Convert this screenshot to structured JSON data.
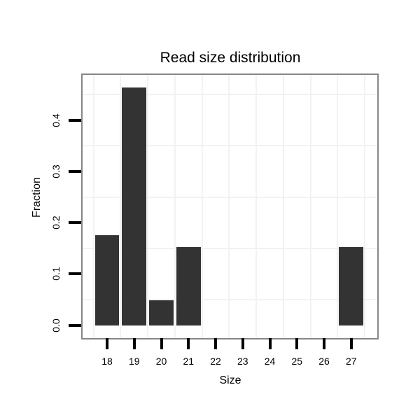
{
  "chart_data": {
    "type": "bar",
    "title": "Read size distribution",
    "xlabel": "Size",
    "ylabel": "Fraction",
    "categories": [
      "18",
      "19",
      "20",
      "21",
      "22",
      "23",
      "24",
      "25",
      "26",
      "27"
    ],
    "values": [
      0.176,
      0.464,
      0.049,
      0.153,
      0,
      0,
      0,
      0,
      0,
      0.153
    ],
    "y_ticks": [
      0.0,
      0.1,
      0.2,
      0.3,
      0.4
    ],
    "y_tick_labels": [
      "0.0",
      "0.1",
      "0.2",
      "0.3",
      "0.4"
    ],
    "ylim": [
      -0.0245,
      0.4885
    ],
    "bar_width_fraction": 0.9,
    "grid": {
      "horizontal_minor_breaks": [
        0.05,
        0.15,
        0.25,
        0.35,
        0.45
      ],
      "vertical_minor": "between-categories",
      "major_gridlines": "none"
    },
    "legend_position": "none",
    "colors": {
      "bar": "#333333",
      "grid": "#f2f2f2",
      "panel_border": "#878787",
      "tick": "#000000",
      "text": "#000000",
      "background": "#ffffff"
    }
  }
}
